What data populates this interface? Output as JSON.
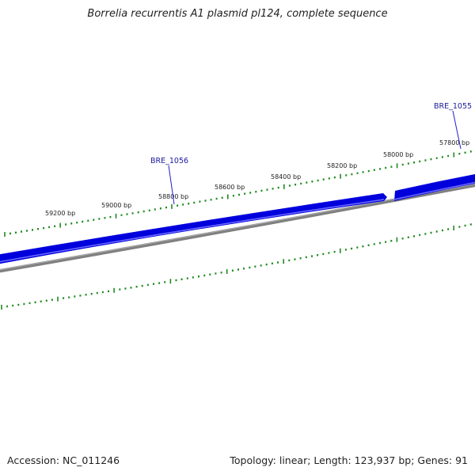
{
  "title": "Borrelia recurrentis A1 plasmid pl124, complete sequence",
  "footer": {
    "accession": "Accession: NC_011246",
    "summary": "Topology: linear; Length: 123,937 bp; Genes: 91"
  },
  "colors": {
    "gene_fill": "#0000dd",
    "gene_highlight": "#6d6dff",
    "backbone": "#808080",
    "tick": "#1f8a1f",
    "label": "#222222",
    "gene_label": "#1a1aa0",
    "gene_label_line": "#2222cc"
  },
  "ruler": {
    "ticks": [
      {
        "bp": 59200,
        "label": "59200 bp"
      },
      {
        "bp": 59000,
        "label": "59000 bp"
      },
      {
        "bp": 58800,
        "label": "58800 bp"
      },
      {
        "bp": 58600,
        "label": "58600 bp"
      },
      {
        "bp": 58400,
        "label": "58400 bp"
      },
      {
        "bp": 58200,
        "label": "58200 bp"
      },
      {
        "bp": 58000,
        "label": "58000 bp"
      },
      {
        "bp": 57800,
        "label": "57800 bp"
      }
    ]
  },
  "genes": [
    {
      "name": "BRE_1056",
      "label": "BRE_1056"
    },
    {
      "name": "BRE_1055",
      "label": "BRE_1055"
    }
  ]
}
